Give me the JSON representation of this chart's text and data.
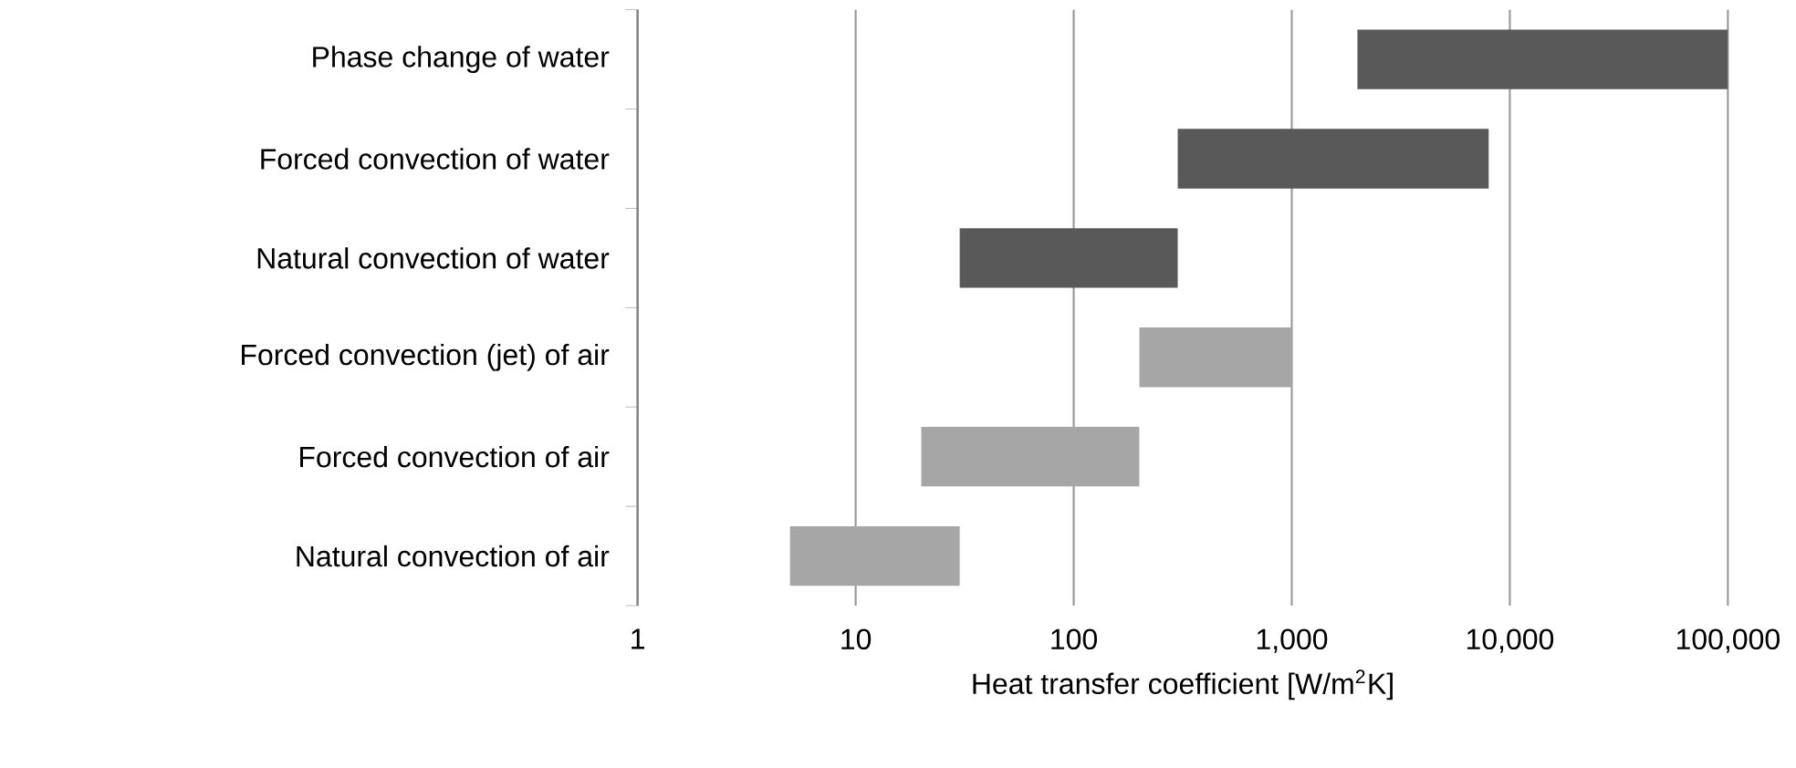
{
  "chart_data": {
    "type": "bar",
    "orientation": "horizontal",
    "xlabel": "Heat transfer coefficient [W/m$^{2}$K]",
    "categories": [
      "Phase change of water",
      "Forced convection of water",
      "Natural convection of water",
      "Forced convection (jet) of air",
      "Forced convection of air",
      "Natural convection of air"
    ],
    "base": [
      2000,
      300,
      30,
      200,
      20,
      5
    ],
    "values": [
      98000,
      7700,
      270,
      800,
      180,
      25
    ],
    "colors": [
      "#595959",
      "#595959",
      "#595959",
      "#a6a6a6",
      "#a6a6a6",
      "#a6a6a6"
    ],
    "log": "x",
    "xlim": [
      1,
      100000
    ],
    "xticks": [
      1,
      10,
      100,
      {
        "value": 1000,
        "label": "1,000"
      },
      {
        "value": 10000,
        "label": "10,000"
      },
      {
        "value": 100000,
        "label": "100,000"
      }
    ],
    "grid": "x"
  }
}
